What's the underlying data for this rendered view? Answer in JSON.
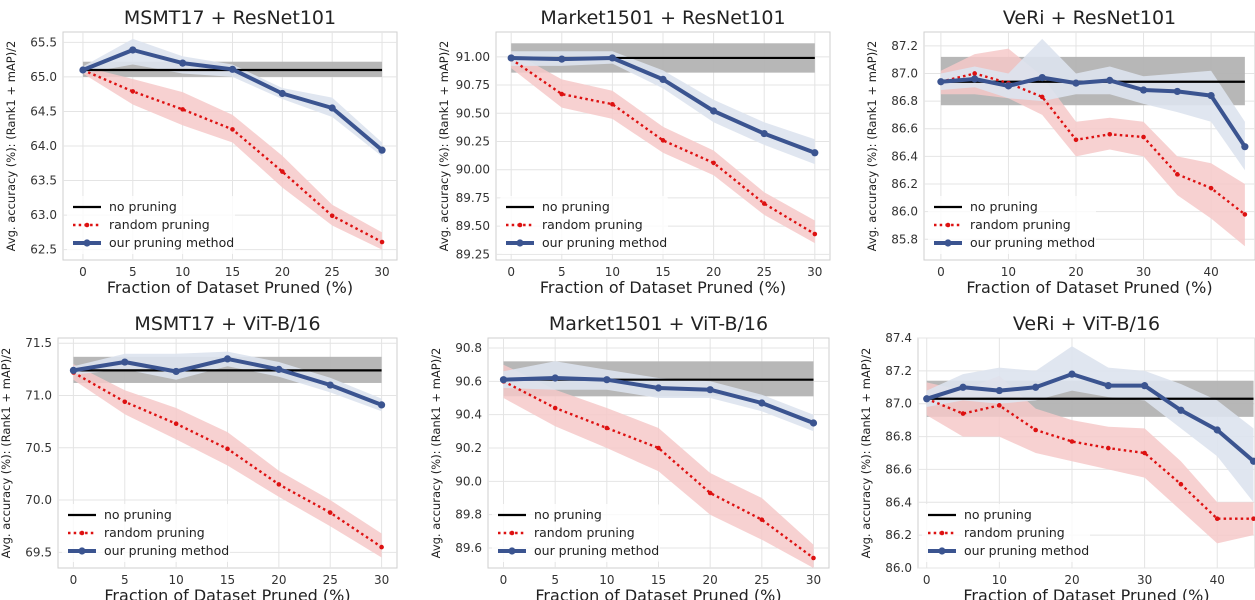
{
  "figure": {
    "xlabel": "Fraction of Dataset Pruned (%)",
    "ylabel": "Avg. accuracy (%): (Rank1 + mAP)/2",
    "legend": [
      "no pruning",
      "random pruning",
      "our pruning method"
    ],
    "colors": {
      "baseline": "#000000",
      "random": "#dd1111",
      "ours": "#3b5490",
      "band_baseline": "#b3b3b3",
      "band_random": "#f6c9c9",
      "band_ours": "#dde3ee"
    }
  },
  "chart_data": [
    {
      "type": "line",
      "title": "MSMT17 + ResNet101",
      "xlabel": "Fraction of Dataset Pruned (%)",
      "ylabel": "Avg. accuracy (%): (Rank1 + mAP)/2",
      "xlim": [
        -2,
        31.5
      ],
      "ylim": [
        62.35,
        65.65
      ],
      "xticks": [
        0,
        5,
        10,
        15,
        20,
        25,
        30
      ],
      "yticks": [
        62.5,
        63.0,
        63.5,
        64.0,
        64.5,
        65.0,
        65.5
      ],
      "ydecimals": 1,
      "grid": true,
      "legend_position": "lower-left",
      "baseline": {
        "name": "no pruning",
        "x": [
          0,
          30
        ],
        "value": 65.1,
        "band": [
          65.0,
          65.22
        ]
      },
      "series": [
        {
          "name": "random pruning",
          "x": [
            0,
            5,
            10,
            15,
            20,
            25,
            30
          ],
          "values": [
            65.1,
            64.79,
            64.53,
            64.24,
            63.63,
            62.99,
            62.61
          ],
          "lower": [
            65.05,
            64.6,
            64.3,
            64.05,
            63.4,
            62.85,
            62.5
          ],
          "upper": [
            65.15,
            64.97,
            64.78,
            64.45,
            63.86,
            63.15,
            62.75
          ]
        },
        {
          "name": "our pruning method",
          "x": [
            0,
            5,
            10,
            15,
            20,
            25,
            30
          ],
          "values": [
            65.1,
            65.39,
            65.2,
            65.11,
            64.76,
            64.55,
            63.94
          ],
          "lower": [
            65.05,
            65.18,
            65.05,
            65.0,
            64.68,
            64.42,
            63.85
          ],
          "upper": [
            65.15,
            65.55,
            65.3,
            65.18,
            64.84,
            64.7,
            64.05
          ]
        }
      ]
    },
    {
      "type": "line",
      "title": "Market1501 + ResNet101",
      "xlabel": "Fraction of Dataset Pruned (%)",
      "ylabel": "Avg. accuracy (%): (Rank1 + mAP)/2",
      "xlim": [
        -1.5,
        31.5
      ],
      "ylim": [
        89.2,
        91.22
      ],
      "xticks": [
        0,
        5,
        10,
        15,
        20,
        25,
        30
      ],
      "yticks": [
        89.25,
        89.5,
        89.75,
        90.0,
        90.25,
        90.5,
        90.75,
        91.0
      ],
      "ydecimals": 2,
      "grid": true,
      "legend_position": "lower-left",
      "baseline": {
        "name": "no pruning",
        "x": [
          0,
          30
        ],
        "value": 90.99,
        "band": [
          90.86,
          91.12
        ]
      },
      "series": [
        {
          "name": "random pruning",
          "x": [
            0,
            5,
            10,
            15,
            20,
            25,
            30
          ],
          "values": [
            90.98,
            90.67,
            90.58,
            90.26,
            90.06,
            89.7,
            89.43
          ],
          "lower": [
            90.9,
            90.55,
            90.45,
            90.15,
            89.95,
            89.6,
            89.35
          ],
          "upper": [
            91.05,
            90.8,
            90.7,
            90.38,
            90.17,
            89.8,
            89.55
          ]
        },
        {
          "name": "our pruning method",
          "x": [
            0,
            5,
            10,
            15,
            20,
            25,
            30
          ],
          "values": [
            90.99,
            90.98,
            90.99,
            90.8,
            90.52,
            90.32,
            90.15
          ],
          "lower": [
            90.92,
            90.92,
            90.94,
            90.72,
            90.42,
            90.22,
            90.05
          ],
          "upper": [
            91.05,
            91.05,
            91.05,
            90.88,
            90.62,
            90.42,
            90.27
          ]
        }
      ]
    },
    {
      "type": "line",
      "title": "VeRi + ResNet101",
      "xlabel": "Fraction of Dataset Pruned (%)",
      "ylabel": "Avg. accuracy (%): (Rank1 + mAP)/2",
      "xlim": [
        -2.5,
        46.5
      ],
      "ylim": [
        85.65,
        87.3
      ],
      "xticks": [
        0,
        10,
        20,
        30,
        40
      ],
      "yticks": [
        85.8,
        86.0,
        86.2,
        86.4,
        86.6,
        86.8,
        87.0,
        87.2
      ],
      "ydecimals": 1,
      "grid": true,
      "legend_position": "lower-left",
      "baseline": {
        "name": "no pruning",
        "x": [
          0,
          45
        ],
        "value": 86.94,
        "band": [
          86.77,
          87.12
        ]
      },
      "series": [
        {
          "name": "random pruning",
          "x": [
            0,
            5,
            10,
            15,
            20,
            25,
            30,
            35,
            40,
            45
          ],
          "values": [
            86.94,
            87.0,
            86.93,
            86.83,
            86.52,
            86.56,
            86.54,
            86.27,
            86.17,
            85.98
          ],
          "lower": [
            86.85,
            86.85,
            86.82,
            86.7,
            86.4,
            86.45,
            86.4,
            86.12,
            85.95,
            85.75
          ],
          "upper": [
            87.02,
            87.14,
            87.18,
            86.98,
            86.65,
            86.68,
            86.65,
            86.4,
            86.35,
            86.2
          ]
        },
        {
          "name": "our pruning method",
          "x": [
            0,
            5,
            10,
            15,
            20,
            25,
            30,
            35,
            40,
            45
          ],
          "values": [
            86.94,
            86.96,
            86.91,
            86.97,
            86.93,
            86.95,
            86.88,
            86.87,
            86.84,
            86.47
          ],
          "lower": [
            86.88,
            86.9,
            86.82,
            86.8,
            86.85,
            86.85,
            86.78,
            86.72,
            86.65,
            86.3
          ],
          "upper": [
            87.0,
            87.05,
            87.0,
            87.25,
            87.0,
            87.05,
            86.98,
            87.0,
            87.02,
            86.65
          ]
        }
      ]
    },
    {
      "type": "line",
      "title": "MSMT17 + ViT-B/16",
      "xlabel": "Fraction of Dataset Pruned (%)",
      "ylabel": "Avg. accuracy (%): (Rank1 + mAP)/2",
      "xlim": [
        -1.5,
        31.5
      ],
      "ylim": [
        69.35,
        71.55
      ],
      "xticks": [
        0,
        5,
        10,
        15,
        20,
        25,
        30
      ],
      "yticks": [
        69.5,
        70.0,
        70.5,
        71.0,
        71.5
      ],
      "ydecimals": 1,
      "grid": true,
      "legend_position": "lower-left",
      "baseline": {
        "name": "no pruning",
        "x": [
          0,
          30
        ],
        "value": 71.24,
        "band": [
          71.12,
          71.37
        ]
      },
      "series": [
        {
          "name": "random pruning",
          "x": [
            0,
            5,
            10,
            15,
            20,
            25,
            30
          ],
          "values": [
            71.22,
            70.94,
            70.73,
            70.49,
            70.15,
            69.88,
            69.55
          ],
          "lower": [
            71.15,
            70.82,
            70.58,
            70.33,
            70.03,
            69.75,
            69.45
          ],
          "upper": [
            71.3,
            71.05,
            70.88,
            70.65,
            70.28,
            70.0,
            69.68
          ]
        },
        {
          "name": "our pruning method",
          "x": [
            0,
            5,
            10,
            15,
            20,
            25,
            30
          ],
          "values": [
            71.24,
            71.32,
            71.23,
            71.35,
            71.25,
            71.1,
            70.91
          ],
          "lower": [
            71.2,
            71.25,
            71.15,
            71.28,
            71.18,
            71.03,
            70.85
          ],
          "upper": [
            71.28,
            71.4,
            71.4,
            71.42,
            71.32,
            71.17,
            70.97
          ]
        }
      ]
    },
    {
      "type": "line",
      "title": "Market1501 + ViT-B/16",
      "xlabel": "Fraction of Dataset Pruned (%)",
      "ylabel": "Avg. accuracy (%): (Rank1 + mAP)/2",
      "xlim": [
        -1.5,
        31.5
      ],
      "ylim": [
        89.48,
        90.86
      ],
      "xticks": [
        0,
        5,
        10,
        15,
        20,
        25,
        30
      ],
      "yticks": [
        89.6,
        89.8,
        90.0,
        90.2,
        90.4,
        90.6,
        90.8
      ],
      "ydecimals": 1,
      "grid": true,
      "legend_position": "lower-left",
      "baseline": {
        "name": "no pruning",
        "x": [
          0,
          30
        ],
        "value": 90.61,
        "band": [
          90.51,
          90.72
        ]
      },
      "series": [
        {
          "name": "random pruning",
          "x": [
            0,
            5,
            10,
            15,
            20,
            25,
            30
          ],
          "values": [
            90.6,
            90.44,
            90.32,
            90.2,
            89.93,
            89.77,
            89.54
          ],
          "lower": [
            90.5,
            90.33,
            90.2,
            90.06,
            89.8,
            89.65,
            89.48
          ],
          "upper": [
            90.7,
            90.55,
            90.44,
            90.32,
            90.05,
            89.9,
            89.62
          ]
        },
        {
          "name": "our pruning method",
          "x": [
            0,
            5,
            10,
            15,
            20,
            25,
            30
          ],
          "values": [
            90.61,
            90.62,
            90.61,
            90.56,
            90.55,
            90.47,
            90.35
          ],
          "lower": [
            90.56,
            90.55,
            90.55,
            90.5,
            90.5,
            90.42,
            90.3
          ],
          "upper": [
            90.66,
            90.72,
            90.67,
            90.62,
            90.6,
            90.52,
            90.4
          ]
        }
      ]
    },
    {
      "type": "line",
      "title": "VeRi + ViT-B/16",
      "xlabel": "Fraction of Dataset Pruned (%)",
      "ylabel": "Avg. accuracy (%): (Rank1 + mAP)/2",
      "xlim": [
        -1.2,
        45.2
      ],
      "ylim": [
        86.0,
        87.4
      ],
      "xticks": [
        0,
        10,
        20,
        30,
        40
      ],
      "yticks": [
        86.0,
        86.2,
        86.4,
        86.6,
        86.8,
        87.0,
        87.2,
        87.4
      ],
      "ydecimals": 1,
      "grid": true,
      "legend_position": "lower-left",
      "baseline": {
        "name": "no pruning",
        "x": [
          0,
          45
        ],
        "value": 87.03,
        "band": [
          86.92,
          87.14
        ]
      },
      "series": [
        {
          "name": "random pruning",
          "x": [
            0,
            5,
            10,
            15,
            20,
            25,
            30,
            35,
            40,
            45
          ],
          "values": [
            87.03,
            86.94,
            86.99,
            86.84,
            86.77,
            86.73,
            86.7,
            86.51,
            86.3,
            86.3
          ],
          "lower": [
            86.93,
            86.8,
            86.8,
            86.7,
            86.65,
            86.6,
            86.55,
            86.35,
            86.15,
            86.2
          ],
          "upper": [
            87.13,
            87.08,
            87.17,
            86.97,
            86.9,
            86.86,
            86.85,
            86.65,
            86.4,
            86.4
          ]
        },
        {
          "name": "our pruning method",
          "x": [
            0,
            5,
            10,
            15,
            20,
            25,
            30,
            35,
            40,
            45
          ],
          "values": [
            87.03,
            87.1,
            87.08,
            87.1,
            87.18,
            87.11,
            87.11,
            86.96,
            86.84,
            86.65
          ],
          "lower": [
            86.98,
            87.02,
            87.0,
            87.02,
            87.08,
            87.04,
            87.02,
            86.85,
            86.68,
            86.4
          ],
          "upper": [
            87.08,
            87.18,
            87.22,
            87.2,
            87.35,
            87.22,
            87.2,
            87.12,
            87.02,
            86.85
          ]
        }
      ]
    }
  ]
}
